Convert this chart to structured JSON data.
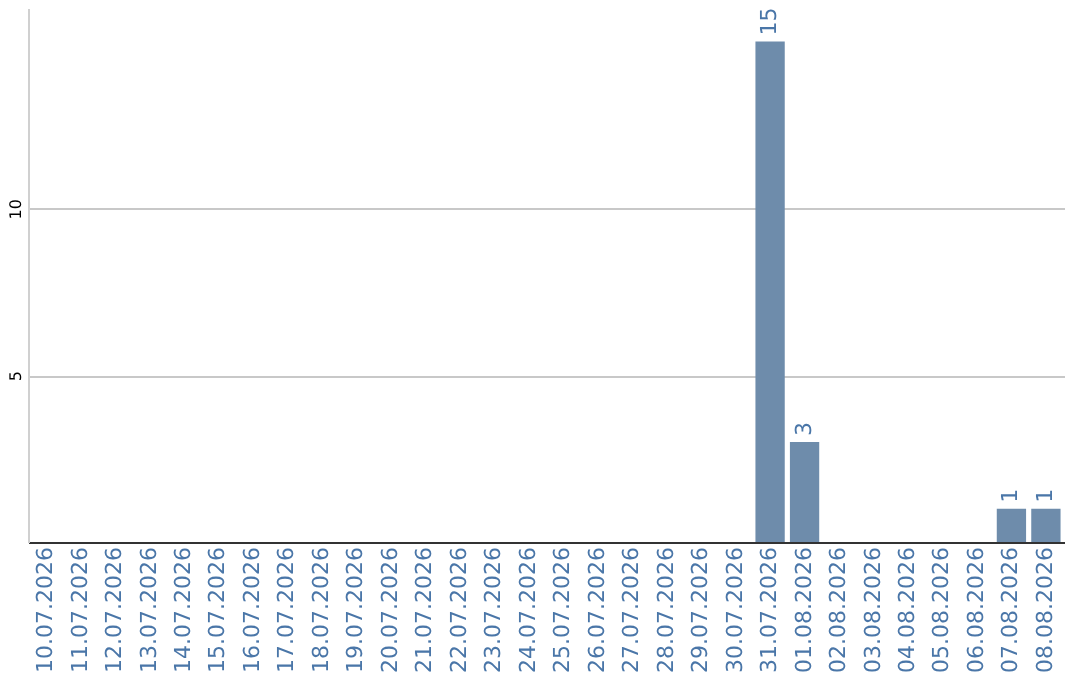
{
  "chart_data": {
    "type": "bar",
    "categories": [
      "10.07.2026",
      "11.07.2026",
      "12.07.2026",
      "13.07.2026",
      "14.07.2026",
      "15.07.2026",
      "16.07.2026",
      "17.07.2026",
      "18.07.2026",
      "19.07.2026",
      "20.07.2026",
      "21.07.2026",
      "22.07.2026",
      "23.07.2026",
      "24.07.2026",
      "25.07.2026",
      "26.07.2026",
      "27.07.2026",
      "28.07.2026",
      "29.07.2026",
      "30.07.2026",
      "31.07.2026",
      "01.08.2026",
      "02.08.2026",
      "03.08.2026",
      "04.08.2026",
      "05.08.2026",
      "06.08.2026",
      "07.08.2026",
      "08.08.2026"
    ],
    "values": [
      0,
      0,
      0,
      0,
      0,
      0,
      0,
      0,
      0,
      0,
      0,
      0,
      0,
      0,
      0,
      0,
      0,
      0,
      0,
      0,
      0,
      15,
      3,
      0,
      0,
      0,
      0,
      0,
      1,
      1
    ],
    "value_labels": [
      null,
      null,
      null,
      null,
      null,
      null,
      null,
      null,
      null,
      null,
      null,
      null,
      null,
      null,
      null,
      null,
      null,
      null,
      null,
      null,
      null,
      "15",
      "3",
      null,
      null,
      null,
      null,
      null,
      "1",
      "1"
    ],
    "color": "#6e8cab",
    "ylim": [
      0,
      16
    ],
    "yticks": [
      5,
      10
    ],
    "grid": "y"
  }
}
